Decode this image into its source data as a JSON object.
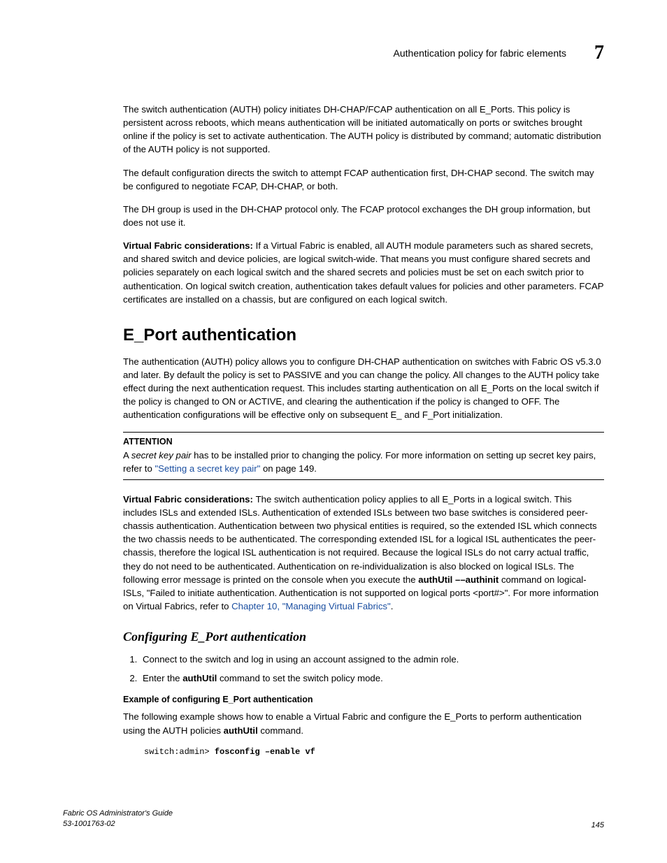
{
  "header": {
    "running_title": "Authentication policy for fabric elements",
    "chapter_number": "7"
  },
  "paragraphs": {
    "p1": "The switch authentication (AUTH) policy initiates DH-CHAP/FCAP authentication on all E_Ports. This policy is persistent across reboots, which means authentication will be initiated automatically on ports or switches brought online if the policy is set to activate authentication. The AUTH policy is distributed by command; automatic distribution of the AUTH policy is not supported.",
    "p2": "The default configuration directs the switch to attempt FCAP authentication first, DH-CHAP second. The switch may be configured to negotiate FCAP, DH-CHAP, or both.",
    "p3": "The DH group is used in the DH-CHAP protocol only. The FCAP protocol exchanges the DH group information, but does not use it.",
    "vf1_label": "Virtual Fabric considerations: ",
    "vf1_text": "If a Virtual Fabric is enabled, all AUTH module parameters such as shared secrets, and shared switch and device policies, are logical switch-wide. That means you must configure shared secrets and policies separately on each logical switch and the shared secrets and policies must be set on each switch prior to authentication. On logical switch creation, authentication takes default values for policies and other parameters. FCAP certificates are installed on a chassis, but are configured on each logical switch.",
    "h2_eport": "E_Port authentication",
    "p4": "The authentication (AUTH) policy allows you to configure DH-CHAP authentication on switches with Fabric OS v5.3.0 and later. By default the policy is set to PASSIVE and you can change the policy. All changes to the AUTH policy take effect during the next authentication request. This includes starting authentication on all E_Ports on the local switch if the policy is changed to ON or ACTIVE, and clearing the authentication if the policy is changed to OFF. The authentication configurations will be effective only on subsequent E_ and F_Port initialization.",
    "attention_label": "ATTENTION",
    "att_a": "A ",
    "att_b_italic": "secret key pair",
    "att_c": " has to be installed prior to changing the policy. For more information on setting up secret key pairs, refer to ",
    "att_link": "\"Setting a secret key pair\"",
    "att_d": " on page 149.",
    "vf2_label": "Virtual Fabric considerations: ",
    "vf2_a": "The switch authentication policy applies to all E_Ports in a logical switch. This includes ISLs and extended ISLs. Authentication of extended ISLs between two base switches is considered peer-chassis authentication. Authentication between two physical entities is required, so the extended ISL which connects the two chassis needs to be authenticated. The corresponding extended ISL for a logical ISL authenticates the peer-chassis, therefore the logical ISL authentication is not required. Because the logical ISLs do not carry actual traffic, they do not need to be authenticated. Authentication on re-individualization is also blocked on logical ISLs. The following error message is printed on the console when you execute the ",
    "vf2_cmd": "authUtil ––authinit",
    "vf2_b": " command on logical-ISLs, \"Failed to initiate authentication. Authentication is not supported on logical ports <port#>\". For more information on Virtual Fabrics, refer to ",
    "vf2_link": "Chapter 10, \"Managing Virtual Fabrics\"",
    "vf2_c": ".",
    "h3_config": "Configuring E_Port authentication",
    "step1": "Connect to the switch and log in using an account assigned to the admin role.",
    "step2_a": "Enter the ",
    "step2_cmd": "authUtil",
    "step2_b": " command to set the switch policy mode.",
    "example_label": "Example  of configuring E_Port authentication",
    "p5_a": "The following example shows how to enable a Virtual Fabric and configure the E_Ports to perform authentication using the AUTH policies ",
    "p5_cmd": "authUtil",
    "p5_b": " command.",
    "code_prompt": "switch:admin> ",
    "code_cmd": "fosconfig –enable vf"
  },
  "footer": {
    "title": "Fabric OS Administrator's Guide",
    "docnum": "53-1001763-02",
    "page": "145"
  },
  "colors": {
    "link": "#1a4ea0",
    "text": "#000000",
    "bg": "#ffffff"
  }
}
